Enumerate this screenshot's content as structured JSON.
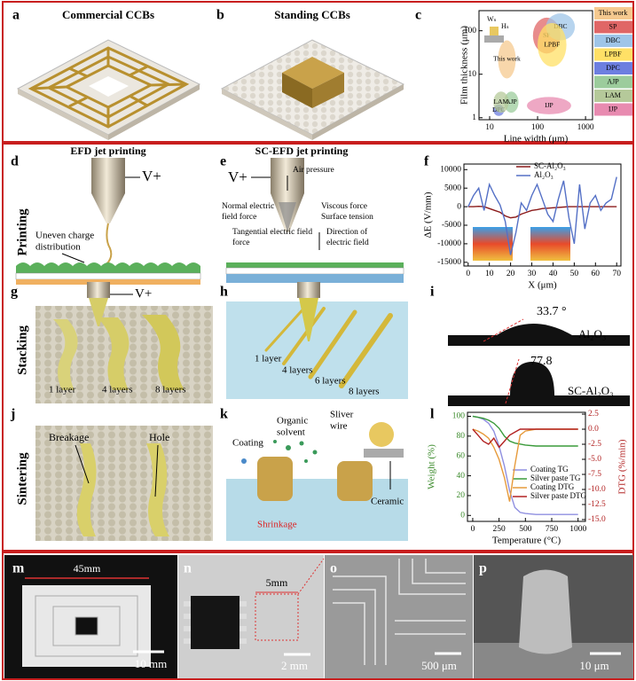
{
  "panel_letters": [
    "a",
    "b",
    "c",
    "d",
    "e",
    "f",
    "g",
    "h",
    "i",
    "j",
    "k",
    "l",
    "m",
    "n",
    "o",
    "p"
  ],
  "row_labels": [
    "Printing",
    "Stacking",
    "Sintering"
  ],
  "panel_a": {
    "title": "Commercial CCBs"
  },
  "panel_b": {
    "title": "Standing CCBs"
  },
  "panel_d": {
    "title": "EFD jet printing",
    "voltage": "V+",
    "annotations": [
      "Uneven charge",
      "distribution"
    ]
  },
  "panel_e": {
    "title": "SC-EFD jet printing",
    "voltage": "V+",
    "annotations": [
      "Air pressure",
      "Normal electric",
      "field force",
      "Viscous force",
      "Surface tension",
      "Tangential electric field",
      "force",
      "Direction of",
      "electric field"
    ]
  },
  "panel_g": {
    "voltage": "V+",
    "layers": [
      "1 layer",
      "4 layers",
      "8 layers"
    ]
  },
  "panel_h": {
    "layers": [
      "1 layer",
      "4 layers",
      "6 layers",
      "8 layers"
    ]
  },
  "panel_i": {
    "angles": [
      "33.7 °",
      "77.8"
    ],
    "materials": [
      "Al₂O₃",
      "SC-Al₂O₃"
    ]
  },
  "panel_j": {
    "annotations": [
      "Breakage",
      "Hole"
    ]
  },
  "panel_k": {
    "annotations": [
      "Organic",
      "solvent",
      "Sliver",
      "wire",
      "Coating",
      "Ceramic",
      "Shrinkage"
    ]
  },
  "panel_m": {
    "dimension": "45mm",
    "scale_bar": "10 mm"
  },
  "panel_n": {
    "dimension": "5mm",
    "scale_bar": "2 mm"
  },
  "panel_o": {
    "scale_bar": "500 μm"
  },
  "panel_p": {
    "scale_bar": "10 μm"
  },
  "chart_data": [
    {
      "type": "region",
      "xlabel": "Line width (μm)",
      "ylabel": "Film thickness (μm)",
      "xscale": "log",
      "yscale": "log",
      "xlim": [
        6,
        1400
      ],
      "ylim": [
        0.9,
        290
      ],
      "xticks": [
        10,
        100,
        1000
      ],
      "yticks": [
        1,
        10,
        100
      ],
      "annotations": [
        "Wₛ",
        "Hₛ"
      ],
      "regions": [
        {
          "name": "This work",
          "color": "#f5c98f",
          "xrange": [
            15,
            35
          ],
          "yrange": [
            8,
            60
          ]
        },
        {
          "name": "SP",
          "color": "#e06666",
          "xrange": [
            80,
            300
          ],
          "yrange": [
            30,
            200
          ]
        },
        {
          "name": "DBC",
          "color": "#9fc5e8",
          "xrange": [
            150,
            600
          ],
          "yrange": [
            60,
            250
          ]
        },
        {
          "name": "LPBF",
          "color": "#ffe066",
          "xrange": [
            100,
            400
          ],
          "yrange": [
            15,
            150
          ]
        },
        {
          "name": "DPC",
          "color": "#6d7fe0",
          "xrange": [
            12,
            20
          ],
          "yrange": [
            1.1,
            2
          ]
        },
        {
          "name": "AJP",
          "color": "#9ccc9c",
          "xrange": [
            20,
            40
          ],
          "yrange": [
            1.3,
            4
          ]
        },
        {
          "name": "LAM",
          "color": "#b5c99a",
          "xrange": [
            12,
            25
          ],
          "yrange": [
            1.3,
            4
          ]
        },
        {
          "name": "IJP",
          "color": "#e88bb0",
          "xrange": [
            60,
            500
          ],
          "yrange": [
            1.2,
            3
          ]
        }
      ]
    },
    {
      "type": "line",
      "xlabel": "X (μm)",
      "ylabel": "ΔE (V/mm)",
      "xlim": [
        -2,
        72
      ],
      "ylim": [
        -16000,
        11500
      ],
      "xticks": [
        0,
        10,
        20,
        30,
        40,
        50,
        60,
        70
      ],
      "yticks": [
        -15000,
        -10000,
        -5000,
        0,
        5000,
        10000
      ],
      "x": [
        0,
        2.5,
        5,
        7.5,
        10,
        12.5,
        15,
        17.5,
        20,
        22.5,
        25,
        27.5,
        30,
        32.5,
        35,
        37.5,
        40,
        42.5,
        45,
        47.5,
        50,
        52.5,
        55,
        57.5,
        60,
        62.5,
        65,
        67.5,
        70
      ],
      "series": [
        {
          "name": "SC-Al₂O₃",
          "color": "#8b1a1a",
          "values": [
            0,
            0,
            100,
            0,
            -500,
            -1000,
            -1500,
            -2500,
            -3000,
            -2800,
            -2000,
            -1500,
            -1000,
            -800,
            -500,
            -400,
            -300,
            -200,
            -100,
            0,
            0,
            0,
            0,
            0,
            0,
            0,
            0,
            0,
            0
          ]
        },
        {
          "name": "Al₂O₃",
          "color": "#5470c6",
          "values": [
            0,
            3000,
            5000,
            -1000,
            6000,
            3000,
            500,
            -4000,
            -13000,
            -7000,
            1000,
            -1000,
            3000,
            6000,
            2000,
            -2000,
            -4000,
            2000,
            7000,
            -3000,
            -10000,
            6000,
            -6000,
            1000,
            3000,
            -1000,
            1000,
            2000,
            8000
          ]
        }
      ]
    },
    {
      "type": "line",
      "xlabel": "Temperature (°C)",
      "ylabel": "Weight (%)",
      "y2label": "DTG (%/min)",
      "ylabel_color": "#3a8a2a",
      "y2label_color": "#b22222",
      "xlim": [
        -50,
        1070
      ],
      "ylim": [
        -6,
        104
      ],
      "y2lim": [
        -15.3,
        2.8
      ],
      "xticks": [
        0,
        250,
        500,
        750,
        1000
      ],
      "yticks": [
        0,
        20,
        40,
        60,
        80,
        100
      ],
      "y2ticks": [
        2.5,
        {
          "value": 0,
          "label": "0.0"
        },
        -2.5,
        {
          "value": -5,
          "label": "-5.0"
        },
        -7.5,
        {
          "value": -10,
          "label": "-10.0"
        },
        -12.5,
        {
          "value": -15,
          "label": "-15.0"
        }
      ],
      "x": [
        0,
        50,
        100,
        150,
        200,
        250,
        300,
        350,
        400,
        450,
        500,
        600,
        700,
        800,
        900,
        1000
      ],
      "series": [
        {
          "name": "Coating TG",
          "color": "#8f8fe0",
          "values": [
            100,
            99,
            97,
            93,
            85,
            70,
            50,
            25,
            8,
            3,
            2,
            1,
            1,
            1,
            1,
            1
          ]
        },
        {
          "name": "Silver paste TG",
          "color": "#3a9a3a",
          "values": [
            100,
            99,
            98,
            96,
            93,
            88,
            80,
            75,
            73,
            72,
            71,
            70,
            70,
            70,
            70,
            70
          ]
        },
        {
          "name": "Coating DTG",
          "color": "#e69a3a",
          "axis": "y2",
          "values": [
            0,
            -0.3,
            -0.8,
            -1.5,
            -3,
            -5,
            -8,
            -12,
            -6,
            -1,
            -0.3,
            0,
            0,
            0,
            0,
            0
          ]
        },
        {
          "name": "Silver paste DTG",
          "color": "#b22222",
          "axis": "y2",
          "values": [
            0,
            -1,
            -2,
            -2.5,
            -1.5,
            -3,
            -2,
            -1,
            -0.5,
            0,
            0,
            0,
            0,
            0,
            0,
            0
          ]
        }
      ]
    }
  ]
}
